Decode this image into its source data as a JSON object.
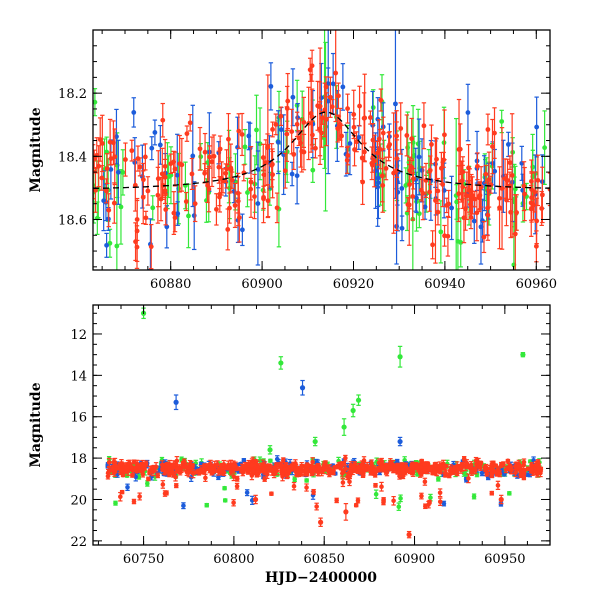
{
  "colors": {
    "red": "#ff3b1f",
    "green": "#33e83a",
    "blue": "#1c5cdb",
    "model": "#000000"
  },
  "chart_data": [
    {
      "type": "scatter",
      "panel": "top",
      "title": "",
      "xlabel": "",
      "ylabel": "Magnitude",
      "xlim": [
        60863,
        60963
      ],
      "ylim": [
        18.76,
        18.0
      ],
      "y_inverted": true,
      "xticks": [
        60880,
        60900,
        60920,
        60940,
        60960
      ],
      "xtick_labels": [
        "60880",
        "60900",
        "60920",
        "60940",
        "60960"
      ],
      "yticks": [
        18.2,
        18.4,
        18.6
      ],
      "ytick_labels": [
        "18.2",
        "18.4",
        "18.6"
      ],
      "model_curve": {
        "type": "microlensing_peak",
        "t0": 60914,
        "baseline": 18.51,
        "peak": 18.26,
        "width": 14
      },
      "series": [
        {
          "name": "red",
          "color": "#ff3b1f",
          "n_points": 260,
          "cadence_days": 0.38,
          "scatter_mag": 0.085,
          "err_min": 0.02,
          "err_max": 0.09
        },
        {
          "name": "green",
          "color": "#33e83a",
          "n_points": 95,
          "cadence_days": 1.05,
          "scatter_mag": 0.1,
          "err_min": 0.035,
          "err_max": 0.12
        },
        {
          "name": "blue",
          "color": "#1c5cdb",
          "n_points": 95,
          "cadence_days": 1.05,
          "scatter_mag": 0.1,
          "err_min": 0.035,
          "err_max": 0.13
        }
      ]
    },
    {
      "type": "scatter",
      "panel": "bottom",
      "title": "",
      "xlabel": "HJD−2400000",
      "ylabel": "Magnitude",
      "xlim": [
        60722,
        60975
      ],
      "ylim": [
        22.2,
        10.6
      ],
      "y_inverted": true,
      "xticks": [
        60750,
        60800,
        60850,
        60900,
        60950
      ],
      "xtick_labels": [
        "60750",
        "60800",
        "60850",
        "60900",
        "60950"
      ],
      "yticks": [
        12,
        14,
        16,
        18,
        20,
        22
      ],
      "ytick_labels": [
        "12",
        "14",
        "16",
        "18",
        "20",
        "22"
      ],
      "baseline_mag": 18.5,
      "outliers": [
        {
          "x": 60750,
          "y": 11.0,
          "err": 0.25,
          "series": "green"
        },
        {
          "x": 60768,
          "y": 15.3,
          "err": 0.35,
          "series": "blue"
        },
        {
          "x": 60826,
          "y": 13.4,
          "err": 0.3,
          "series": "green"
        },
        {
          "x": 60838,
          "y": 14.6,
          "err": 0.35,
          "series": "blue"
        },
        {
          "x": 60866,
          "y": 15.7,
          "err": 0.3,
          "series": "green"
        },
        {
          "x": 60869,
          "y": 15.2,
          "err": 0.25,
          "series": "green"
        },
        {
          "x": 60861,
          "y": 16.5,
          "err": 0.4,
          "series": "green"
        },
        {
          "x": 60892,
          "y": 13.1,
          "err": 0.5,
          "series": "green"
        },
        {
          "x": 60960,
          "y": 13.0,
          "err": 0.1,
          "series": "green"
        },
        {
          "x": 60845,
          "y": 17.2,
          "err": 0.2,
          "series": "green"
        },
        {
          "x": 60820,
          "y": 17.6,
          "err": 0.2,
          "series": "green"
        },
        {
          "x": 60848,
          "y": 21.1,
          "err": 0.2,
          "series": "red"
        },
        {
          "x": 60897,
          "y": 21.7,
          "err": 0.15,
          "series": "red"
        },
        {
          "x": 60862,
          "y": 20.6,
          "err": 0.4,
          "series": "red"
        },
        {
          "x": 60812,
          "y": 20.0,
          "err": 0.2,
          "series": "red"
        },
        {
          "x": 60892,
          "y": 17.2,
          "err": 0.2,
          "series": "blue"
        },
        {
          "x": 60948,
          "y": 20.0,
          "err": 0.2,
          "series": "red"
        }
      ],
      "series": [
        {
          "name": "red",
          "color": "#ff3b1f",
          "n_points": 600,
          "scatter_mag": 0.17
        },
        {
          "name": "green",
          "color": "#33e83a",
          "n_points": 150,
          "scatter_mag": 0.2
        },
        {
          "name": "blue",
          "color": "#1c5cdb",
          "n_points": 150,
          "scatter_mag": 0.2
        }
      ]
    }
  ]
}
